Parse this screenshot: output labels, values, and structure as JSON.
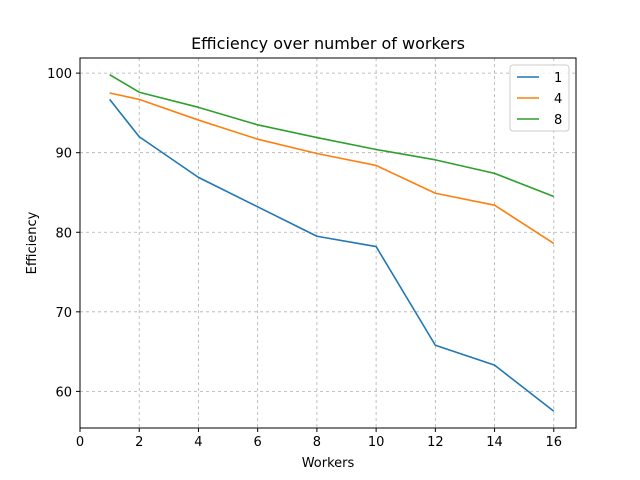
{
  "chart_data": {
    "type": "line",
    "title": "Efficiency over number of workers",
    "xlabel": "Workers",
    "ylabel": "Efficiency",
    "x": [
      1,
      2,
      4,
      6,
      8,
      10,
      12,
      14,
      16
    ],
    "xlim": [
      0,
      16.75
    ],
    "ylim": [
      55.4,
      101.9
    ],
    "xticks": [
      0,
      2,
      4,
      6,
      8,
      10,
      12,
      14,
      16
    ],
    "yticks": [
      60,
      70,
      80,
      90,
      100
    ],
    "grid": true,
    "legend_position": "top-right",
    "series": [
      {
        "name": "1",
        "color": "#1f77b4",
        "values": [
          96.7,
          92.0,
          86.9,
          83.2,
          79.5,
          78.2,
          65.8,
          63.3,
          57.5
        ]
      },
      {
        "name": "4",
        "color": "#ff7f0e",
        "values": [
          97.5,
          96.7,
          94.1,
          91.7,
          89.9,
          88.4,
          84.9,
          83.4,
          78.6
        ]
      },
      {
        "name": "8",
        "color": "#2ca02c",
        "values": [
          99.8,
          97.6,
          95.7,
          93.5,
          91.9,
          90.4,
          89.1,
          87.4,
          84.5
        ]
      }
    ]
  }
}
